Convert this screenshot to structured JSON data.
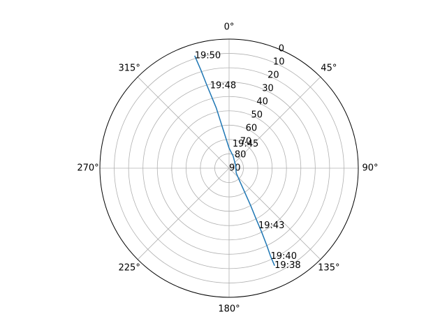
{
  "chart_data": {
    "type": "polar-line",
    "projection": "polar",
    "theta_direction": "clockwise",
    "theta_zero_location": "N",
    "r_axis": {
      "inverted": true,
      "range": [
        0,
        90
      ],
      "ticks": [
        0,
        10,
        20,
        30,
        40,
        50,
        60,
        70,
        80,
        90
      ],
      "tick_labels": [
        "0",
        "10",
        "20",
        "30",
        "40",
        "50",
        "60",
        "70",
        "80",
        "90"
      ]
    },
    "theta_axis": {
      "ticks": [
        0,
        45,
        90,
        135,
        180,
        225,
        270,
        315
      ],
      "tick_labels": [
        "0°",
        "45°",
        "90°",
        "135°",
        "180°",
        "225°",
        "270°",
        "315°"
      ]
    },
    "grid": true,
    "series": [
      {
        "color": "#1f77b4",
        "points": [
          {
            "azimuth": 155,
            "elevation": 15
          },
          {
            "azimuth": 154.8,
            "elevation": 22
          },
          {
            "azimuth": 154,
            "elevation": 30
          },
          {
            "azimuth": 153,
            "elevation": 40
          },
          {
            "azimuth": 152,
            "elevation": 50
          },
          {
            "azimuth": 150,
            "elevation": 60
          },
          {
            "azimuth": 147,
            "elevation": 70
          },
          {
            "azimuth": 141,
            "elevation": 78
          },
          {
            "azimuth": 124,
            "elevation": 84
          },
          {
            "azimuth": 65,
            "elevation": 85
          },
          {
            "azimuth": 18,
            "elevation": 81
          },
          {
            "azimuth": 0,
            "elevation": 76
          },
          {
            "azimuth": -9,
            "elevation": 62
          },
          {
            "azimuth": -12,
            "elevation": 47
          },
          {
            "azimuth": -15,
            "elevation": 30
          },
          {
            "azimuth": -16,
            "elevation": 19
          },
          {
            "azimuth": -17,
            "elevation": 8
          }
        ]
      }
    ],
    "annotations": [
      {
        "text": "19:38",
        "azimuth": 155,
        "elevation": 15
      },
      {
        "text": "19:40",
        "azimuth": 154.8,
        "elevation": 22
      },
      {
        "text": "19:43",
        "azimuth": 153,
        "elevation": 45
      },
      {
        "text": "19:45",
        "azimuth": 8,
        "elevation": 73
      },
      {
        "text": "19:48",
        "azimuth": -13,
        "elevation": 31
      },
      {
        "text": "19:50",
        "azimuth": -17,
        "elevation": 8
      }
    ]
  }
}
